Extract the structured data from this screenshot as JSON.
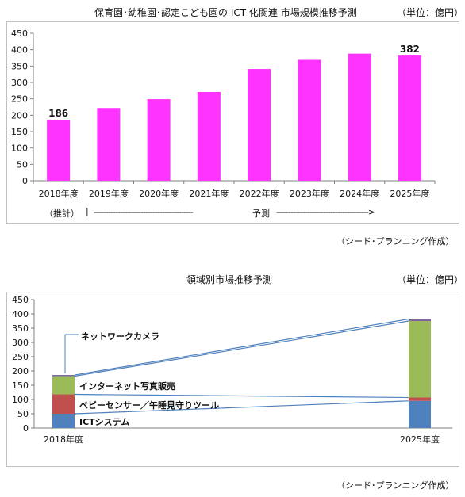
{
  "chart1": {
    "title": "保育園･幼稚園･認定こども園の ICT 化関連  市場規模推移予測",
    "unit": "（単位：億円）",
    "source": "（シード･プランニング作成）",
    "note_estimate": "（推計）",
    "note_forecast_bar": "|",
    "note_forecast_dashes_left": "------------------------------------------",
    "note_forecast_label": "予測",
    "note_forecast_dashes_right": "--------------------------------------->",
    "y_ticks": [
      "0",
      "50",
      "100",
      "150",
      "200",
      "250",
      "300",
      "350",
      "400",
      "450"
    ]
  },
  "chart2": {
    "title": "領域別市場推移予測",
    "unit": "（単位：億円）",
    "source": "（シード･プランニング作成）",
    "y_ticks": [
      "0",
      "50",
      "100",
      "150",
      "200",
      "250",
      "300",
      "350",
      "400",
      "450"
    ],
    "labels": {
      "camera": "ネットワークカメラ",
      "photo": "インターネット写真販売",
      "baby": "ベビーセンサー／午睡見守りツール",
      "ict": "ICTシステム"
    }
  },
  "chart_data": [
    {
      "type": "bar",
      "title": "保育園･幼稚園･認定こども園の ICT 化関連  市場規模推移予測",
      "unit": "（単位：億円）",
      "categories": [
        "2018年度",
        "2019年度",
        "2020年度",
        "2021年度",
        "2022年度",
        "2023年度",
        "2024年度",
        "2025年度"
      ],
      "values": [
        186,
        222,
        249,
        271,
        341,
        369,
        388,
        382
      ],
      "data_labels": [
        "186",
        "",
        "",
        "",
        "",
        "",
        "",
        "382"
      ],
      "ylim": [
        0,
        450
      ],
      "y_step": 50,
      "color": "#ff33ff",
      "grid": false
    },
    {
      "type": "bar",
      "stacked": true,
      "title": "領域別市場推移予測",
      "unit": "（単位：億円）",
      "categories": [
        "2018年度",
        "2025年度"
      ],
      "ylim": [
        0,
        450
      ],
      "y_step": 50,
      "grid": false,
      "series": [
        {
          "name": "ICTシステム",
          "values": [
            50,
            95
          ],
          "color": "#4f81bd"
        },
        {
          "name": "ベビーセンサー／午睡見守りツール",
          "values": [
            68,
            12
          ],
          "color": "#c0504d"
        },
        {
          "name": "インターネット写真販売",
          "values": [
            64,
            268
          ],
          "color": "#9bbb59"
        },
        {
          "name": "ネットワークカメラ",
          "values": [
            4,
            7
          ],
          "color": "#8064a2"
        }
      ]
    }
  ]
}
